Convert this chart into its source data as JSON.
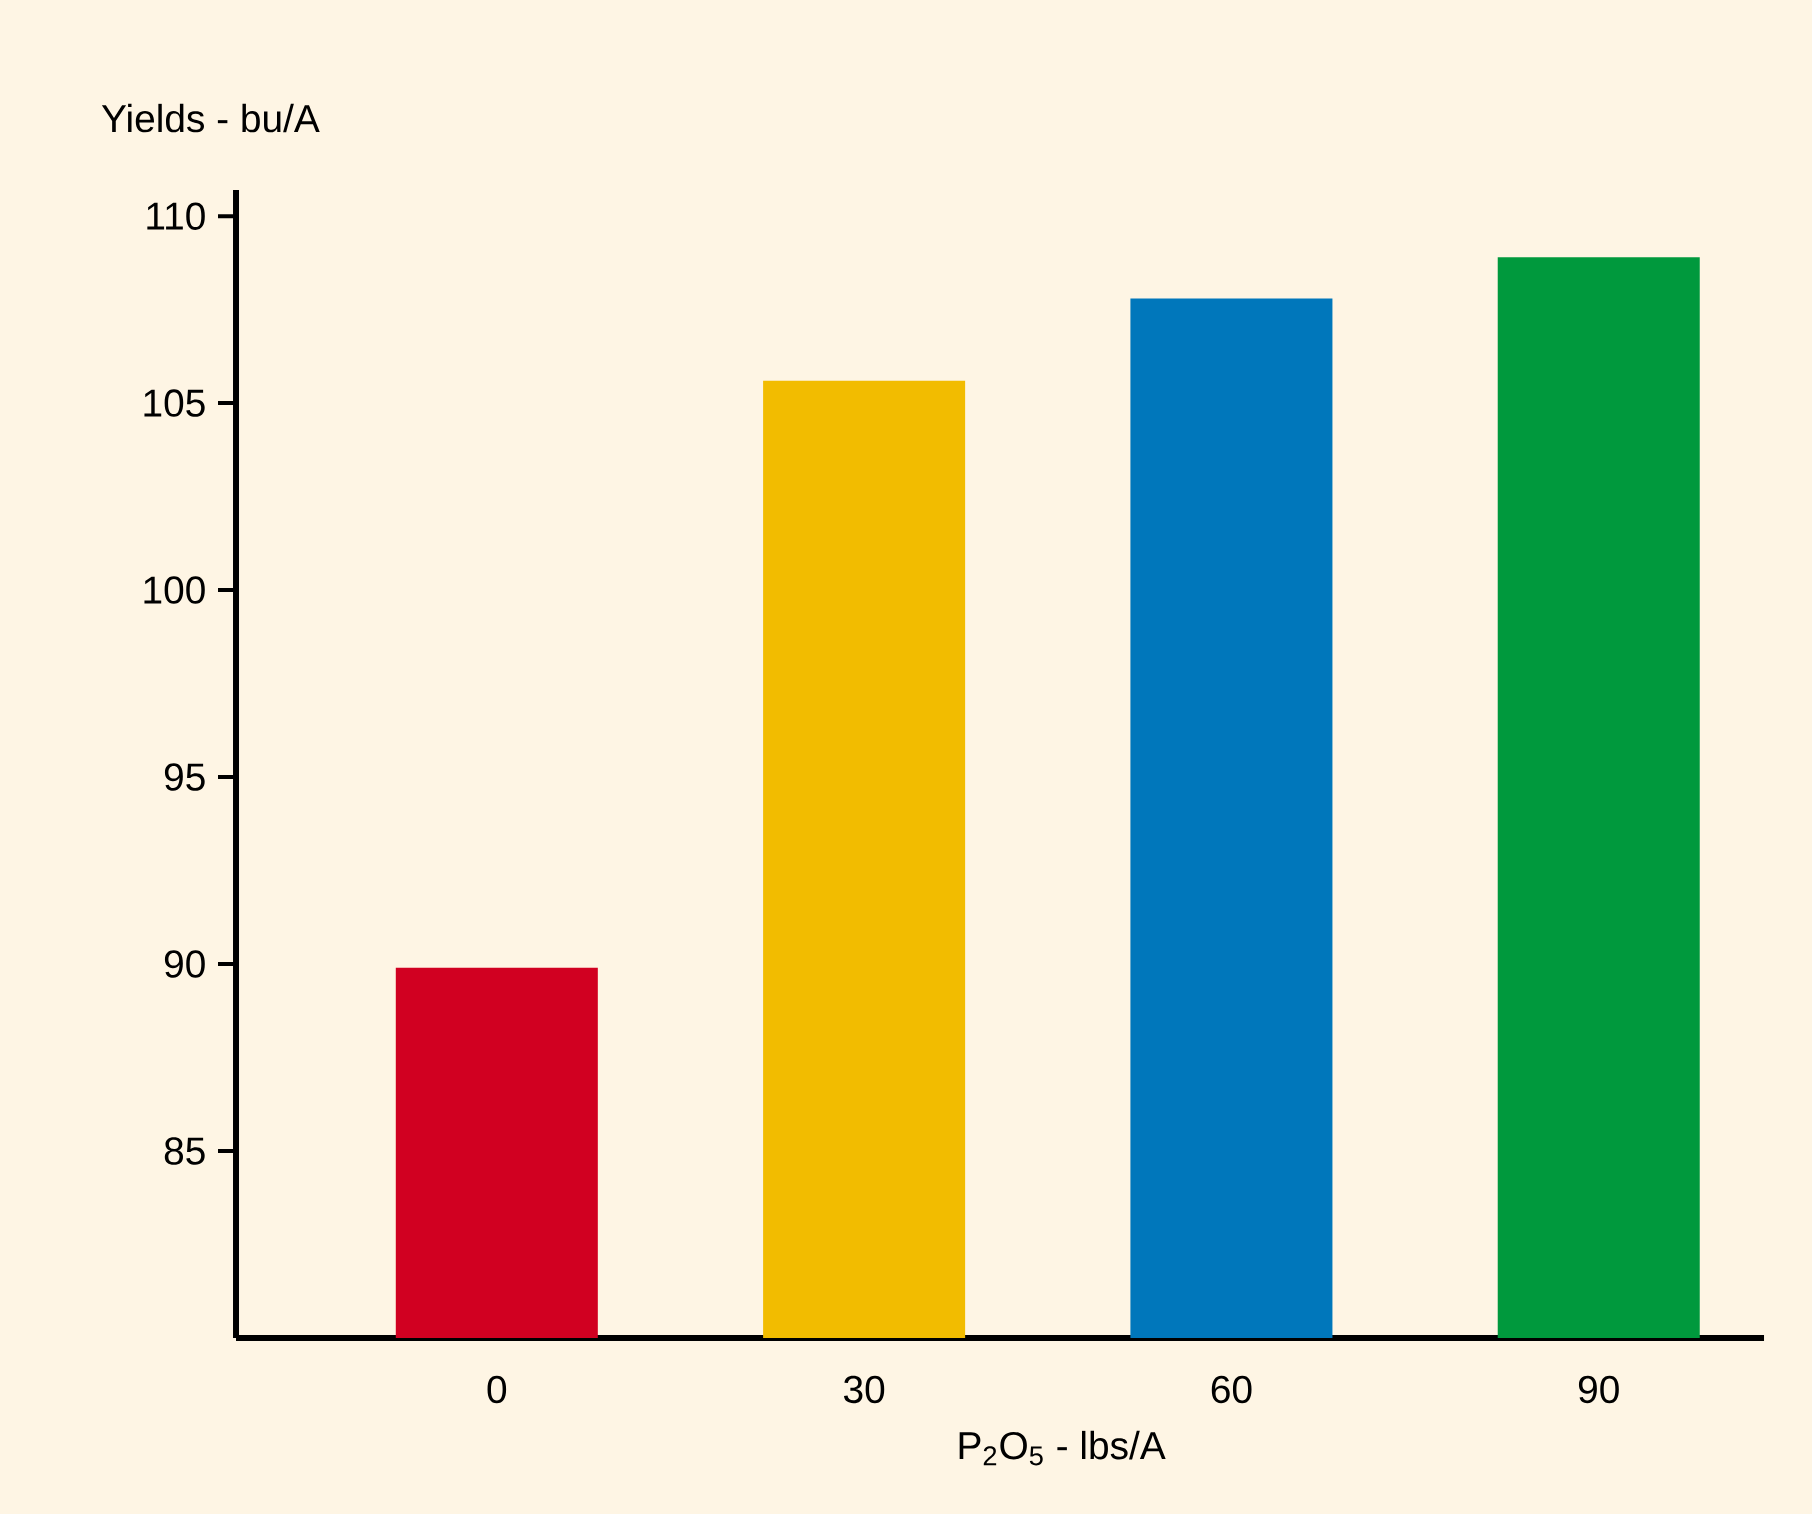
{
  "chart_data": {
    "type": "bar",
    "xlabel": "P$_{2}$O$_{5}$ - lbs/A",
    "ylabel": "Yields - bu/A",
    "categories": [
      "0",
      "30",
      "60",
      "90"
    ],
    "values": [
      89.9,
      105.6,
      107.8,
      108.9
    ],
    "colors": [
      "#d10021",
      "#f2bc00",
      "#0077bb",
      "#00993d"
    ],
    "ylim": [
      80,
      110.7
    ],
    "yticks": [
      85,
      90,
      95,
      100,
      105,
      110
    ]
  }
}
